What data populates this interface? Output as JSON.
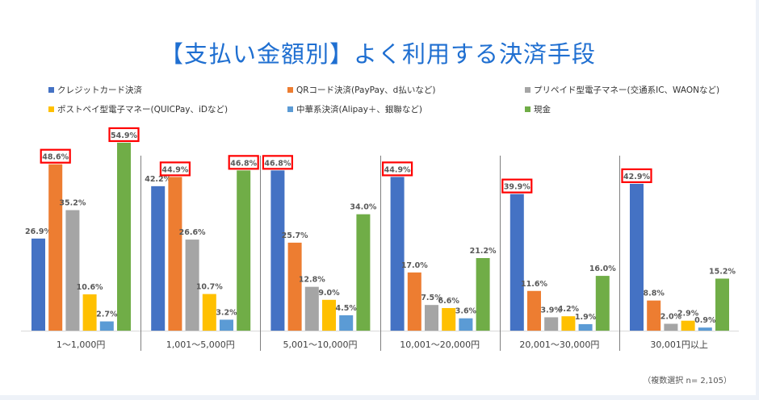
{
  "title": "【支払い金額別】よく利用する決済手段",
  "note": "（複数選択 n= 2,105）",
  "chart_data": {
    "type": "bar",
    "title": "【支払い金額別】よく利用する決済手段",
    "categories": [
      "1～1,000円",
      "1,001～5,000円",
      "5,001～10,000円",
      "10,001～20,000円",
      "20,001～30,000円",
      "30,001円以上"
    ],
    "unit": "%",
    "ylim": [
      0,
      60
    ],
    "grid": false,
    "legend_position": "top",
    "series": [
      {
        "name": "クレジットカード決済",
        "color": "#4472c4",
        "values": [
          26.9,
          42.2,
          46.8,
          44.9,
          39.9,
          42.9
        ]
      },
      {
        "name": "QRコード決済(PayPay、d払いなど)",
        "color": "#ed7d31",
        "values": [
          48.6,
          44.9,
          25.7,
          17.0,
          11.6,
          8.8
        ]
      },
      {
        "name": "プリペイド型電子マネー(交通系IC、WAONなど)",
        "color": "#a5a5a5",
        "values": [
          35.2,
          26.6,
          12.8,
          7.5,
          3.9,
          2.0
        ]
      },
      {
        "name": "ポストペイ型電子マネー(QUICPay、iDなど)",
        "color": "#ffc000",
        "values": [
          10.6,
          10.7,
          9.0,
          6.6,
          4.2,
          2.9
        ]
      },
      {
        "name": "中華系決済(Alipay＋、銀聯など)",
        "color": "#5b9bd5",
        "values": [
          2.7,
          3.2,
          4.5,
          3.6,
          1.9,
          0.9
        ]
      },
      {
        "name": "現金",
        "color": "#70ad47",
        "values": [
          54.9,
          46.8,
          34.0,
          21.2,
          16.0,
          15.2
        ]
      }
    ],
    "highlighted": [
      [
        1,
        5
      ],
      [
        1,
        5
      ],
      [
        0
      ],
      [
        0
      ],
      [
        0
      ],
      [
        0
      ]
    ],
    "highlight_color": "#ff0000"
  }
}
